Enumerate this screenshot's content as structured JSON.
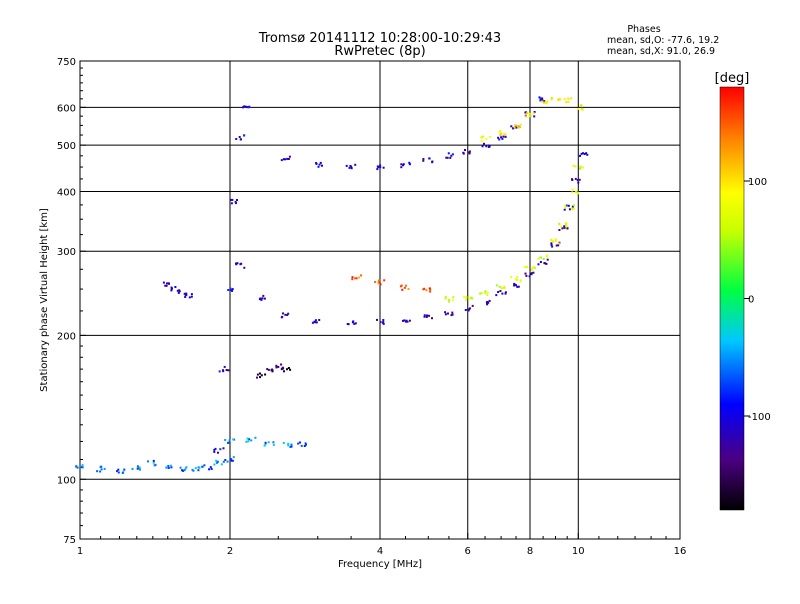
{
  "chart_data": {
    "type": "scatter",
    "title": "Tromsø 20141112 10:28:00-10:29:43",
    "subtitle": "RwPretec (8p)",
    "phase_stats": {
      "heading": "Phases",
      "line1": "mean, sd,O: -77.6, 19.2",
      "line2": "mean, sd,X:  91.0, 26.9"
    },
    "xlabel": "Frequency [MHz]",
    "ylabel": "Stationary phase Virtual Height [km]",
    "xscale": "log",
    "yscale": "log",
    "xlim": [
      1,
      16
    ],
    "ylim": [
      75,
      750
    ],
    "xticks": [
      1,
      2,
      4,
      6,
      8,
      10,
      16
    ],
    "xtick_labels": [
      "1",
      "2",
      "4",
      "6",
      "8",
      "10",
      "16"
    ],
    "xgrid": [
      2,
      4,
      6,
      8,
      10
    ],
    "yticks": [
      75,
      100,
      200,
      300,
      400,
      500,
      600,
      750
    ],
    "ytick_labels": [
      "75",
      "100",
      "200",
      "300",
      "400",
      "500",
      "600",
      "750"
    ],
    "ygrid": [
      100,
      200,
      300,
      400,
      500,
      600
    ],
    "grid": true,
    "colorbar": {
      "label": "[deg]",
      "range": [
        -180,
        180
      ],
      "ticks": [
        100,
        0,
        -100
      ],
      "tick_labels": [
        "100",
        "0",
        "-100"
      ]
    },
    "traces": [
      {
        "x": [
          2.6,
          3.0,
          3.5,
          4.0,
          4.5,
          5.0,
          5.5,
          6.0,
          6.5,
          7.0,
          7.5,
          8.0,
          8.5
        ],
        "y": [
          470,
          455,
          450,
          450,
          455,
          465,
          475,
          485,
          500,
          520,
          545,
          580,
          625
        ],
        "phase": -110
      },
      {
        "x": [
          6.5,
          7.0,
          7.5,
          8.0,
          8.5,
          9.0,
          9.5,
          10.0
        ],
        "y": [
          515,
          530,
          550,
          580,
          610,
          625,
          620,
          600
        ],
        "phase": 90
      },
      {
        "x": [
          2.1,
          2.3,
          2.6,
          3.0,
          3.5,
          4.0,
          4.5,
          5.0,
          5.5,
          6.0,
          6.5,
          7.0,
          7.5,
          8.0,
          8.5,
          9.0,
          9.3,
          9.6,
          9.9,
          10.2
        ],
        "y": [
          280,
          240,
          220,
          215,
          213,
          213,
          215,
          218,
          222,
          228,
          235,
          245,
          255,
          268,
          285,
          310,
          335,
          370,
          420,
          480
        ],
        "phase": -115
      },
      {
        "x": [
          3.6,
          4.0,
          4.5,
          5.0
        ],
        "y": [
          265,
          258,
          252,
          248
        ],
        "phase": 150
      },
      {
        "x": [
          5.5,
          6.0,
          6.5,
          7.0,
          7.5,
          8.0,
          8.5,
          9.0,
          9.3,
          9.6,
          9.8,
          10.0
        ],
        "y": [
          238,
          240,
          245,
          252,
          262,
          275,
          292,
          315,
          340,
          370,
          400,
          450
        ],
        "phase": 75
      },
      {
        "x": [
          1.9,
          1.95,
          2.0,
          2.05,
          2.1,
          2.15
        ],
        "y": [
          115,
          170,
          250,
          380,
          520,
          600
        ],
        "phase": -105
      },
      {
        "x": [
          1.0,
          1.1,
          1.2,
          1.3,
          1.4,
          1.5,
          1.6,
          1.7,
          1.8,
          1.9,
          2.0
        ],
        "y": [
          106,
          105,
          104,
          106,
          108,
          106,
          105,
          105,
          106,
          108,
          110
        ],
        "phase": -60
      },
      {
        "x": [
          2.0,
          2.2,
          2.4,
          2.6,
          2.8
        ],
        "y": [
          120,
          121,
          119,
          118,
          118
        ],
        "phase": -55
      },
      {
        "x": [
          1.5,
          1.55,
          1.6,
          1.65
        ],
        "y": [
          255,
          250,
          246,
          242
        ],
        "phase": -110
      },
      {
        "x": [
          2.3,
          2.4,
          2.5,
          2.6
        ],
        "y": [
          165,
          168,
          172,
          170
        ],
        "phase": -160
      }
    ]
  }
}
